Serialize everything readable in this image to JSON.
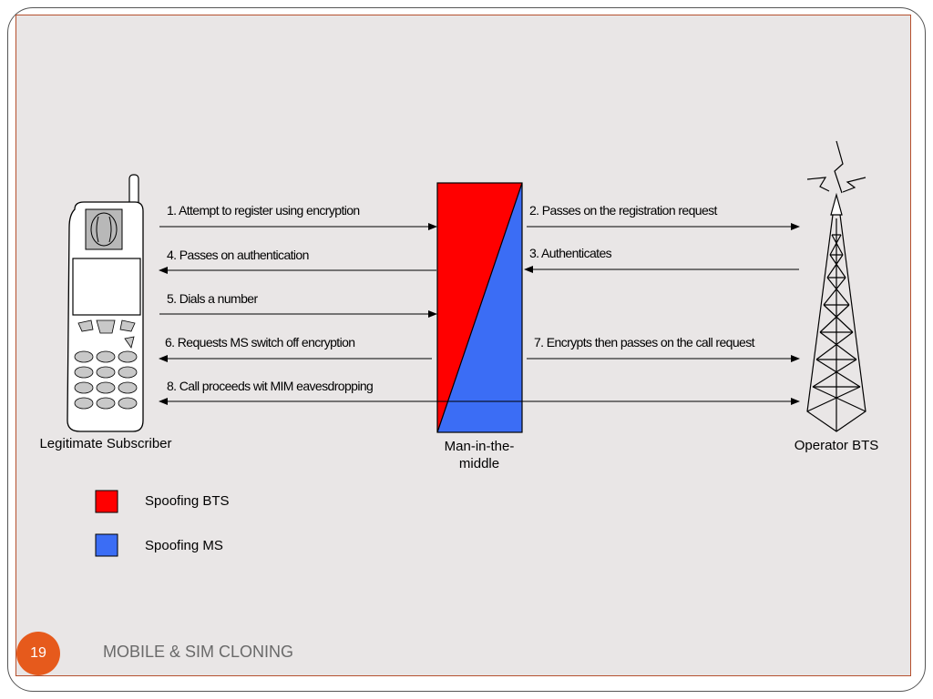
{
  "diagram": {
    "nodes": {
      "subscriber": "Legitimate Subscriber",
      "mitm_line1": "Man-in-the-",
      "mitm_line2": "middle",
      "operator": "Operator BTS"
    },
    "messages": {
      "m1": "1.  Attempt to register using encryption",
      "m2": "2.  Passes on the registration request",
      "m3": "3.  Authenticates",
      "m4": "4.  Passes on authentication",
      "m5": "5.  Dials a number",
      "m6": "6.  Requests MS switch off encryption",
      "m7": "7.  Encrypts then passes on the call request",
      "m8": "8.  Call proceeds wit MIM eavesdropping"
    },
    "legend": [
      {
        "label": "Spoofing BTS",
        "color": "#ff0000"
      },
      {
        "label": "Spoofing MS",
        "color": "#3b6df5"
      }
    ],
    "icons": [
      "mobile-phone-icon",
      "radio-tower-icon"
    ]
  },
  "footer": {
    "page_number": "19",
    "title": "MOBILE & SIM CLONING"
  }
}
